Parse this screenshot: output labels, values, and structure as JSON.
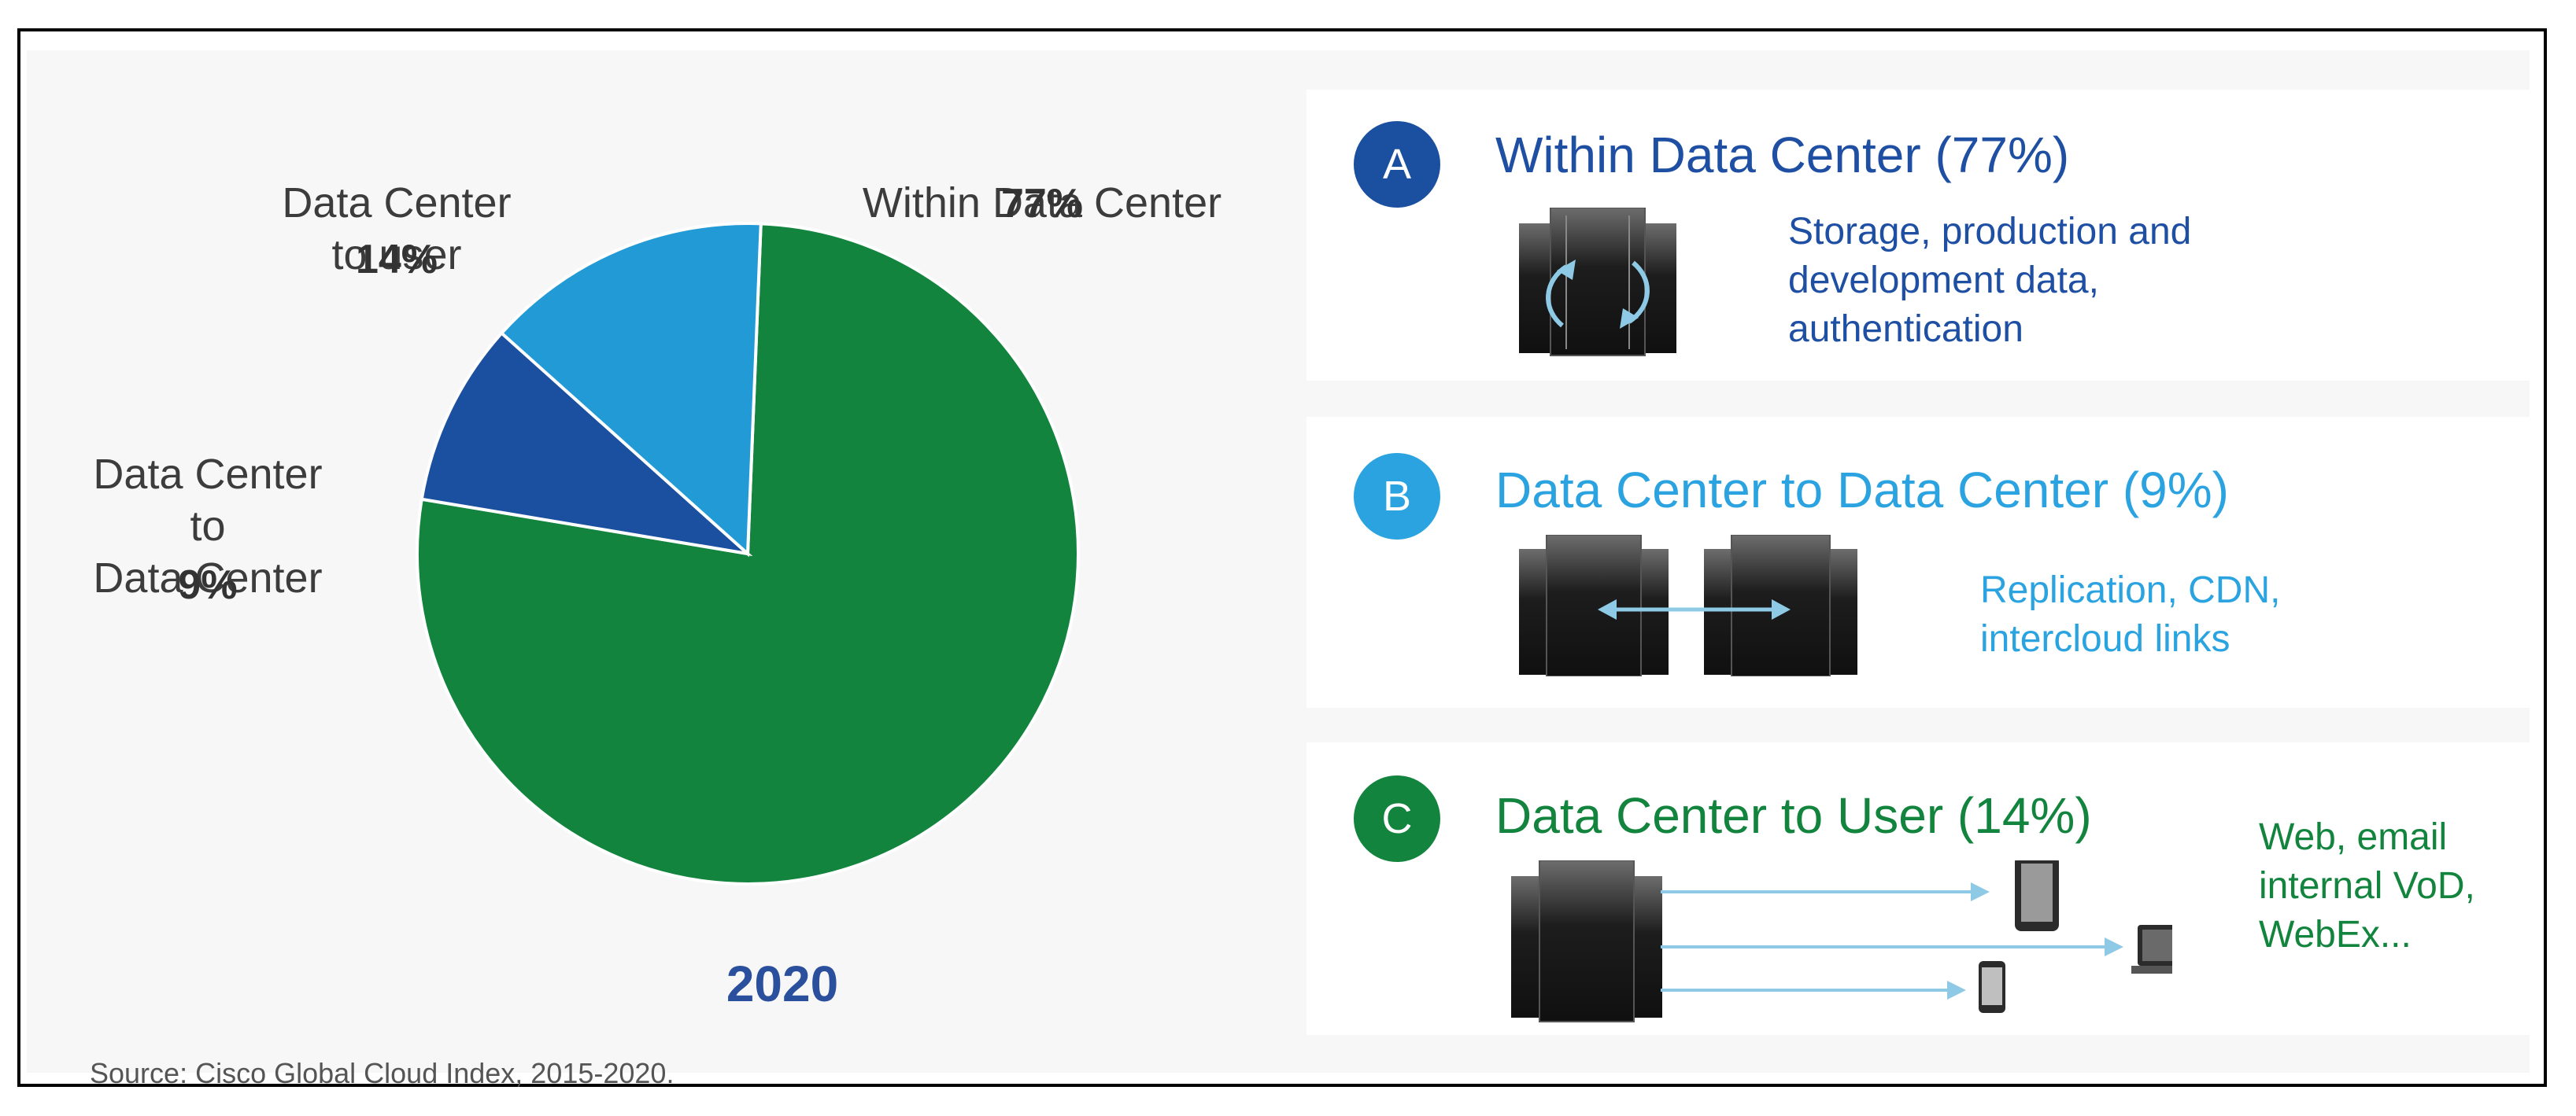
{
  "chart_data": {
    "type": "pie",
    "title": "2020",
    "slices": [
      {
        "label": "Within Data Center",
        "value": 77,
        "pct_label": "77%",
        "color": "#12843d"
      },
      {
        "label": "Data Center\nto\nData Center",
        "value": 9,
        "pct_label": "9%",
        "color": "#1b4fa0"
      },
      {
        "label": "Data Center\nto user",
        "value": 14,
        "pct_label": "14%",
        "color": "#219ad6"
      }
    ],
    "source": "Source: Cisco Global Cloud Index, 2015-2020."
  },
  "cards": [
    {
      "badge": "A",
      "badge_color": "#1b4fa0",
      "title": "Within Data Center (77%)",
      "title_color": "#1e4fa3",
      "description": "Storage, production and\ndevelopment data,\nauthentication",
      "desc_color": "#1e4fa3",
      "icon": "server-rack-with-cycle-arrows-icon"
    },
    {
      "badge": "B",
      "badge_color": "#2aa3e0",
      "title": "Data Center to Data Center (9%)",
      "title_color": "#2aa3e0",
      "description": "Replication, CDN,\nintercloud links",
      "desc_color": "#2aa3e0",
      "icon": "two-server-racks-bidirectional-arrow-icon"
    },
    {
      "badge": "C",
      "badge_color": "#12843d",
      "title": "Data Center to User (14%)",
      "title_color": "#12843d",
      "description": "Web, email\ninternal VoD,\nWebEx...",
      "desc_color": "#12843d",
      "icon": "server-rack-to-devices-icon"
    }
  ]
}
